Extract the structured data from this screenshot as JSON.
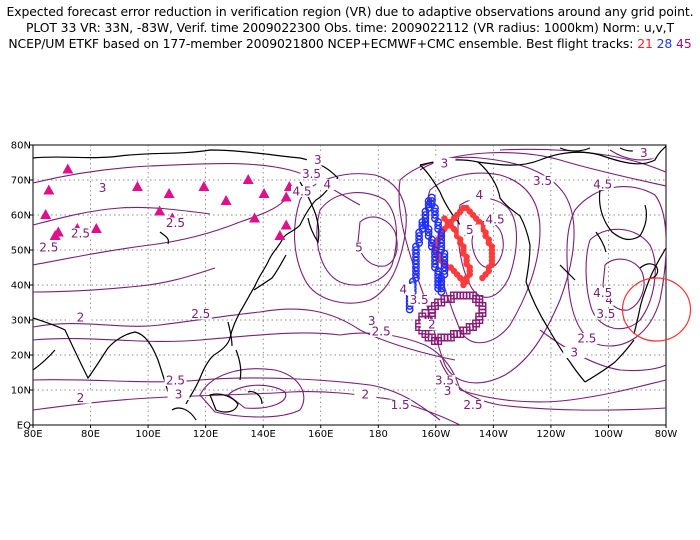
{
  "header": {
    "line1": "Expected forecast error reduction in verification region (VR) due to adaptive observations around any grid point.",
    "line2": "PLOT 33 VR: 33N, -83W, Verif. time 2009022300 Obs. time: 2009022112 (VR radius: 1000km) Norm: u,v,T",
    "line3_prefix": "NCEP/UM ETKF based on 177-member 2009021800 NCEP+ECMWF+CMC ensemble. Best flight tracks:",
    "track1": "21",
    "track2": "28",
    "track3": "45"
  },
  "map_data": {
    "lon_range": [
      80,
      280
    ],
    "lat_range": [
      0,
      80
    ],
    "x_ticks": [
      "80E",
      "80E",
      "100E",
      "120E",
      "140E",
      "160E",
      "180",
      "160W",
      "140W",
      "120W",
      "100W",
      "80W"
    ],
    "y_ticks": [
      "EQ",
      "10N",
      "20N",
      "30N",
      "40N",
      "50N",
      "60N",
      "70N",
      "80N"
    ],
    "grid": true,
    "contour_labels": [
      {
        "text": "3",
        "lon": 102,
        "lat": 67
      },
      {
        "text": "2.5",
        "lon": 85,
        "lat": 50
      },
      {
        "text": "2.5",
        "lon": 95,
        "lat": 54
      },
      {
        "text": "2.5",
        "lon": 125,
        "lat": 57
      },
      {
        "text": "2",
        "lon": 95,
        "lat": 30
      },
      {
        "text": "2.5",
        "lon": 133,
        "lat": 31
      },
      {
        "text": "2.5",
        "lon": 125,
        "lat": 12
      },
      {
        "text": "3",
        "lon": 126,
        "lat": 8
      },
      {
        "text": "2",
        "lon": 95,
        "lat": 7
      },
      {
        "text": "2",
        "lon": 185,
        "lat": 8
      },
      {
        "text": "1.5",
        "lon": 196,
        "lat": 5
      },
      {
        "text": "3",
        "lon": 170,
        "lat": 75
      },
      {
        "text": "3.5",
        "lon": 168,
        "lat": 71
      },
      {
        "text": "4",
        "lon": 173,
        "lat": 68
      },
      {
        "text": "4.5",
        "lon": 165,
        "lat": 66
      },
      {
        "text": "5",
        "lon": 183,
        "lat": 50
      },
      {
        "text": "4",
        "lon": 197,
        "lat": 38
      },
      {
        "text": "3.5",
        "lon": 202,
        "lat": 35
      },
      {
        "text": "3",
        "lon": 187,
        "lat": 29
      },
      {
        "text": "2.5",
        "lon": 190,
        "lat": 26
      },
      {
        "text": "3",
        "lon": 210,
        "lat": 74
      },
      {
        "text": "4",
        "lon": 221,
        "lat": 65
      },
      {
        "text": "4.5",
        "lon": 226,
        "lat": 58
      },
      {
        "text": "5",
        "lon": 218,
        "lat": 55
      },
      {
        "text": "3.5",
        "lon": 241,
        "lat": 69
      },
      {
        "text": "4.5",
        "lon": 260,
        "lat": 68
      },
      {
        "text": "3",
        "lon": 273,
        "lat": 77
      },
      {
        "text": "3.5",
        "lon": 210,
        "lat": 12
      },
      {
        "text": "3",
        "lon": 211,
        "lat": 9
      },
      {
        "text": "2.5",
        "lon": 219,
        "lat": 5
      },
      {
        "text": "2",
        "lon": 206,
        "lat": 28
      },
      {
        "text": "2.5",
        "lon": 255,
        "lat": 24
      },
      {
        "text": "3",
        "lon": 251,
        "lat": 20
      },
      {
        "text": "3.5",
        "lon": 261,
        "lat": 31
      },
      {
        "text": "4",
        "lon": 262,
        "lat": 35
      },
      {
        "text": "4.5",
        "lon": 260,
        "lat": 37
      }
    ],
    "sensitivity_marks": [
      [
        85,
        67
      ],
      [
        91,
        73
      ],
      [
        84,
        60
      ],
      [
        87,
        54
      ],
      [
        94,
        56
      ],
      [
        100,
        56
      ],
      [
        88,
        55
      ],
      [
        113,
        68
      ],
      [
        120,
        61
      ],
      [
        123,
        66
      ],
      [
        124,
        59
      ],
      [
        134,
        68
      ],
      [
        141,
        64
      ],
      [
        148,
        70
      ],
      [
        150,
        59
      ],
      [
        153,
        66
      ],
      [
        158,
        54
      ],
      [
        160,
        57
      ],
      [
        161,
        68
      ],
      [
        160,
        65
      ]
    ],
    "tracks": [
      {
        "name": "21",
        "color": "#ff3b3b",
        "points": [
          [
            210,
            59
          ],
          [
            211,
            58
          ],
          [
            212,
            57
          ],
          [
            213,
            56
          ],
          [
            214,
            55
          ],
          [
            214,
            54
          ],
          [
            215,
            53
          ],
          [
            215,
            52
          ],
          [
            216,
            51
          ],
          [
            216,
            50
          ],
          [
            216,
            49
          ],
          [
            217,
            48
          ],
          [
            217,
            47
          ],
          [
            217,
            46
          ],
          [
            218,
            45
          ],
          [
            218,
            44
          ],
          [
            218,
            43
          ],
          [
            217,
            42
          ],
          [
            217,
            41
          ],
          [
            216,
            40
          ],
          [
            216,
            41
          ],
          [
            215,
            42
          ],
          [
            214,
            43
          ],
          [
            213,
            44
          ],
          [
            212,
            45
          ],
          [
            211,
            45
          ],
          [
            210,
            46
          ],
          [
            209,
            47
          ],
          [
            208,
            48
          ],
          [
            208,
            49
          ],
          [
            207,
            50
          ],
          [
            207,
            51
          ],
          [
            208,
            52
          ],
          [
            208,
            53
          ],
          [
            209,
            54
          ],
          [
            209,
            55
          ],
          [
            210,
            56
          ],
          [
            211,
            57
          ],
          [
            212,
            58
          ],
          [
            213,
            59
          ],
          [
            214,
            60
          ],
          [
            215,
            61
          ],
          [
            216,
            62
          ],
          [
            217,
            62
          ],
          [
            218,
            61
          ],
          [
            219,
            60
          ],
          [
            220,
            59
          ],
          [
            221,
            58
          ],
          [
            222,
            57
          ],
          [
            222,
            56
          ],
          [
            223,
            55
          ],
          [
            223,
            54
          ],
          [
            224,
            53
          ],
          [
            224,
            52
          ],
          [
            225,
            51
          ],
          [
            225,
            50
          ],
          [
            225,
            49
          ],
          [
            225,
            48
          ],
          [
            225,
            47
          ],
          [
            225,
            46
          ],
          [
            224,
            45
          ],
          [
            224,
            44
          ],
          [
            223,
            43
          ],
          [
            222,
            42
          ]
        ]
      },
      {
        "name": "28",
        "color": "#1e2dff",
        "points": [
          [
            204,
            58
          ],
          [
            204,
            57
          ],
          [
            205,
            56
          ],
          [
            205,
            55
          ],
          [
            205,
            54
          ],
          [
            206,
            53
          ],
          [
            206,
            52
          ],
          [
            206,
            51
          ],
          [
            207,
            50
          ],
          [
            207,
            49
          ],
          [
            207,
            48
          ],
          [
            207,
            47
          ],
          [
            207,
            46
          ],
          [
            207,
            45
          ],
          [
            208,
            44
          ],
          [
            208,
            43
          ],
          [
            208,
            42
          ],
          [
            208,
            41
          ],
          [
            208,
            40
          ],
          [
            208,
            39
          ],
          [
            209,
            38
          ],
          [
            209,
            39
          ],
          [
            209,
            40
          ],
          [
            209,
            41
          ],
          [
            209,
            42
          ],
          [
            210,
            43
          ],
          [
            210,
            44
          ],
          [
            210,
            45
          ],
          [
            210,
            46
          ],
          [
            210,
            47
          ],
          [
            210,
            48
          ],
          [
            210,
            49
          ],
          [
            209,
            50
          ],
          [
            209,
            51
          ],
          [
            209,
            52
          ],
          [
            209,
            53
          ],
          [
            209,
            54
          ],
          [
            209,
            55
          ],
          [
            208,
            56
          ],
          [
            208,
            57
          ],
          [
            208,
            58
          ],
          [
            207,
            59
          ],
          [
            207,
            60
          ],
          [
            207,
            61
          ],
          [
            207,
            62
          ],
          [
            206,
            63
          ],
          [
            206,
            64
          ],
          [
            206,
            65
          ],
          [
            205,
            64
          ],
          [
            205,
            63
          ],
          [
            205,
            62
          ],
          [
            204,
            61
          ],
          [
            204,
            60
          ],
          [
            204,
            59
          ],
          [
            203,
            58
          ],
          [
            203,
            57
          ],
          [
            203,
            56
          ],
          [
            202,
            55
          ],
          [
            202,
            54
          ],
          [
            202,
            53
          ],
          [
            202,
            52
          ],
          [
            201,
            51
          ],
          [
            201,
            50
          ],
          [
            201,
            49
          ],
          [
            201,
            48
          ],
          [
            201,
            47
          ],
          [
            201,
            46
          ],
          [
            201,
            45
          ],
          [
            201,
            44
          ],
          [
            201,
            43
          ],
          [
            201,
            42
          ],
          [
            200,
            41
          ],
          [
            200,
            40
          ],
          [
            200,
            39
          ],
          [
            200,
            38
          ],
          [
            199,
            37
          ],
          [
            199,
            36
          ],
          [
            199,
            35
          ],
          [
            199,
            34
          ],
          [
            199,
            33
          ]
        ]
      },
      {
        "name": "45",
        "color": "#8a1a78",
        "points": [
          [
            205,
            28
          ],
          [
            205,
            29
          ],
          [
            205,
            30
          ],
          [
            206,
            31
          ],
          [
            206,
            32
          ],
          [
            206,
            33
          ],
          [
            207,
            34
          ],
          [
            208,
            35
          ],
          [
            209,
            35
          ],
          [
            210,
            36
          ],
          [
            211,
            36
          ],
          [
            212,
            36
          ],
          [
            213,
            37
          ],
          [
            214,
            37
          ],
          [
            215,
            37
          ],
          [
            216,
            37
          ],
          [
            217,
            37
          ],
          [
            218,
            37
          ],
          [
            219,
            37
          ],
          [
            220,
            36
          ],
          [
            221,
            36
          ],
          [
            221,
            35
          ],
          [
            222,
            34
          ],
          [
            222,
            33
          ],
          [
            222,
            32
          ],
          [
            221,
            31
          ],
          [
            221,
            30
          ],
          [
            220,
            29
          ],
          [
            219,
            28
          ],
          [
            218,
            28
          ],
          [
            217,
            27
          ],
          [
            216,
            27
          ],
          [
            215,
            26
          ],
          [
            214,
            26
          ],
          [
            213,
            26
          ],
          [
            212,
            25
          ],
          [
            211,
            25
          ],
          [
            210,
            25
          ],
          [
            209,
            25
          ],
          [
            208,
            24
          ],
          [
            207,
            24
          ],
          [
            206,
            25
          ],
          [
            205,
            25
          ],
          [
            204,
            26
          ],
          [
            203,
            27
          ],
          [
            202,
            28
          ],
          [
            202,
            29
          ],
          [
            203,
            30
          ],
          [
            203,
            31
          ],
          [
            204,
            32
          ]
        ]
      }
    ],
    "verification_region": {
      "lon": -83,
      "lat": 33,
      "radius_km": 1000
    }
  },
  "colors": {
    "contour": "#7a2077",
    "sensitivity_mark": "#e0108a",
    "verification_circle": "#ff3333",
    "coast": "#000000",
    "grid": "#666666"
  }
}
